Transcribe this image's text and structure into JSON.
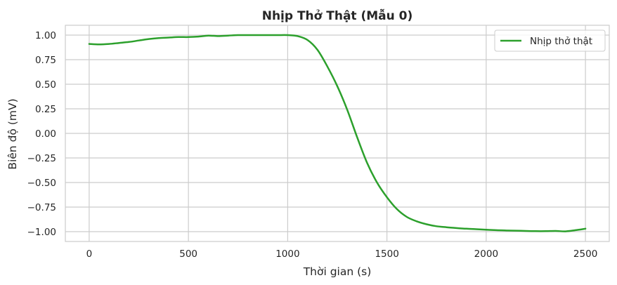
{
  "chart_data": {
    "type": "line",
    "title": "Nhịp Thở Thật (Mẫu 0)",
    "xlabel": "Thời gian (s)",
    "ylabel": "Biên độ (mV)",
    "xlim": [
      -120,
      2620
    ],
    "ylim": [
      -1.1,
      1.1
    ],
    "xticks": [
      0,
      500,
      1000,
      1500,
      2000,
      2500
    ],
    "yticks": [
      -1.0,
      -0.75,
      -0.5,
      -0.25,
      0.0,
      0.25,
      0.5,
      0.75,
      1.0
    ],
    "xtick_labels": [
      "0",
      "500",
      "1000",
      "1500",
      "2000",
      "2500"
    ],
    "ytick_labels": [
      "−1.00",
      "−0.75",
      "−0.50",
      "−0.25",
      "0.00",
      "0.25",
      "0.50",
      "0.75",
      "1.00"
    ],
    "grid": true,
    "legend_position": "top-right",
    "series": [
      {
        "name": "Nhịp thở thật",
        "color": "#2ca02c",
        "x": [
          0,
          50,
          100,
          150,
          200,
          250,
          300,
          350,
          400,
          450,
          500,
          550,
          600,
          650,
          700,
          750,
          800,
          850,
          900,
          950,
          1000,
          1050,
          1100,
          1150,
          1200,
          1250,
          1300,
          1350,
          1400,
          1450,
          1500,
          1550,
          1600,
          1650,
          1700,
          1750,
          1800,
          1850,
          1900,
          1950,
          2000,
          2050,
          2100,
          2150,
          2200,
          2250,
          2300,
          2350,
          2400,
          2450,
          2500
        ],
        "y": [
          0.91,
          0.905,
          0.91,
          0.92,
          0.93,
          0.945,
          0.96,
          0.97,
          0.975,
          0.98,
          0.98,
          0.985,
          0.995,
          0.99,
          0.995,
          1.0,
          1.0,
          1.0,
          1.0,
          1.0,
          1.0,
          0.99,
          0.95,
          0.85,
          0.68,
          0.48,
          0.24,
          -0.04,
          -0.3,
          -0.5,
          -0.65,
          -0.77,
          -0.85,
          -0.895,
          -0.925,
          -0.945,
          -0.955,
          -0.963,
          -0.97,
          -0.975,
          -0.98,
          -0.985,
          -0.988,
          -0.99,
          -0.993,
          -0.995,
          -0.995,
          -0.993,
          -0.997,
          -0.985,
          -0.97
        ]
      }
    ]
  }
}
